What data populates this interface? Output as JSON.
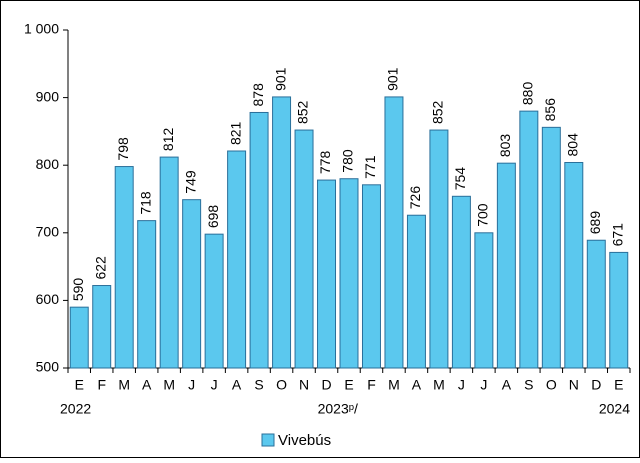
{
  "chart_data": {
    "type": "bar",
    "categories": [
      "E",
      "F",
      "M",
      "A",
      "M",
      "J",
      "J",
      "A",
      "S",
      "O",
      "N",
      "D",
      "E",
      "F",
      "M",
      "A",
      "M",
      "J",
      "J",
      "A",
      "S",
      "O",
      "N",
      "D",
      "E"
    ],
    "year_labels": [
      "2022",
      null,
      null,
      null,
      null,
      null,
      null,
      null,
      null,
      null,
      null,
      null,
      "2023ᵖ/",
      null,
      null,
      null,
      null,
      null,
      null,
      null,
      null,
      null,
      null,
      null,
      "2024"
    ],
    "series": [
      {
        "name": "Vivebús",
        "color": "#5bc8ee",
        "values": [
          590,
          622,
          798,
          718,
          812,
          749,
          698,
          821,
          878,
          901,
          852,
          778,
          780,
          771,
          901,
          726,
          852,
          754,
          700,
          803,
          880,
          856,
          804,
          689,
          671
        ]
      }
    ],
    "ylim": [
      500,
      1000
    ],
    "yticks": [
      500,
      600,
      700,
      800,
      900,
      {
        "value": 1000,
        "label": "1 000"
      }
    ],
    "legend": "bottom"
  }
}
